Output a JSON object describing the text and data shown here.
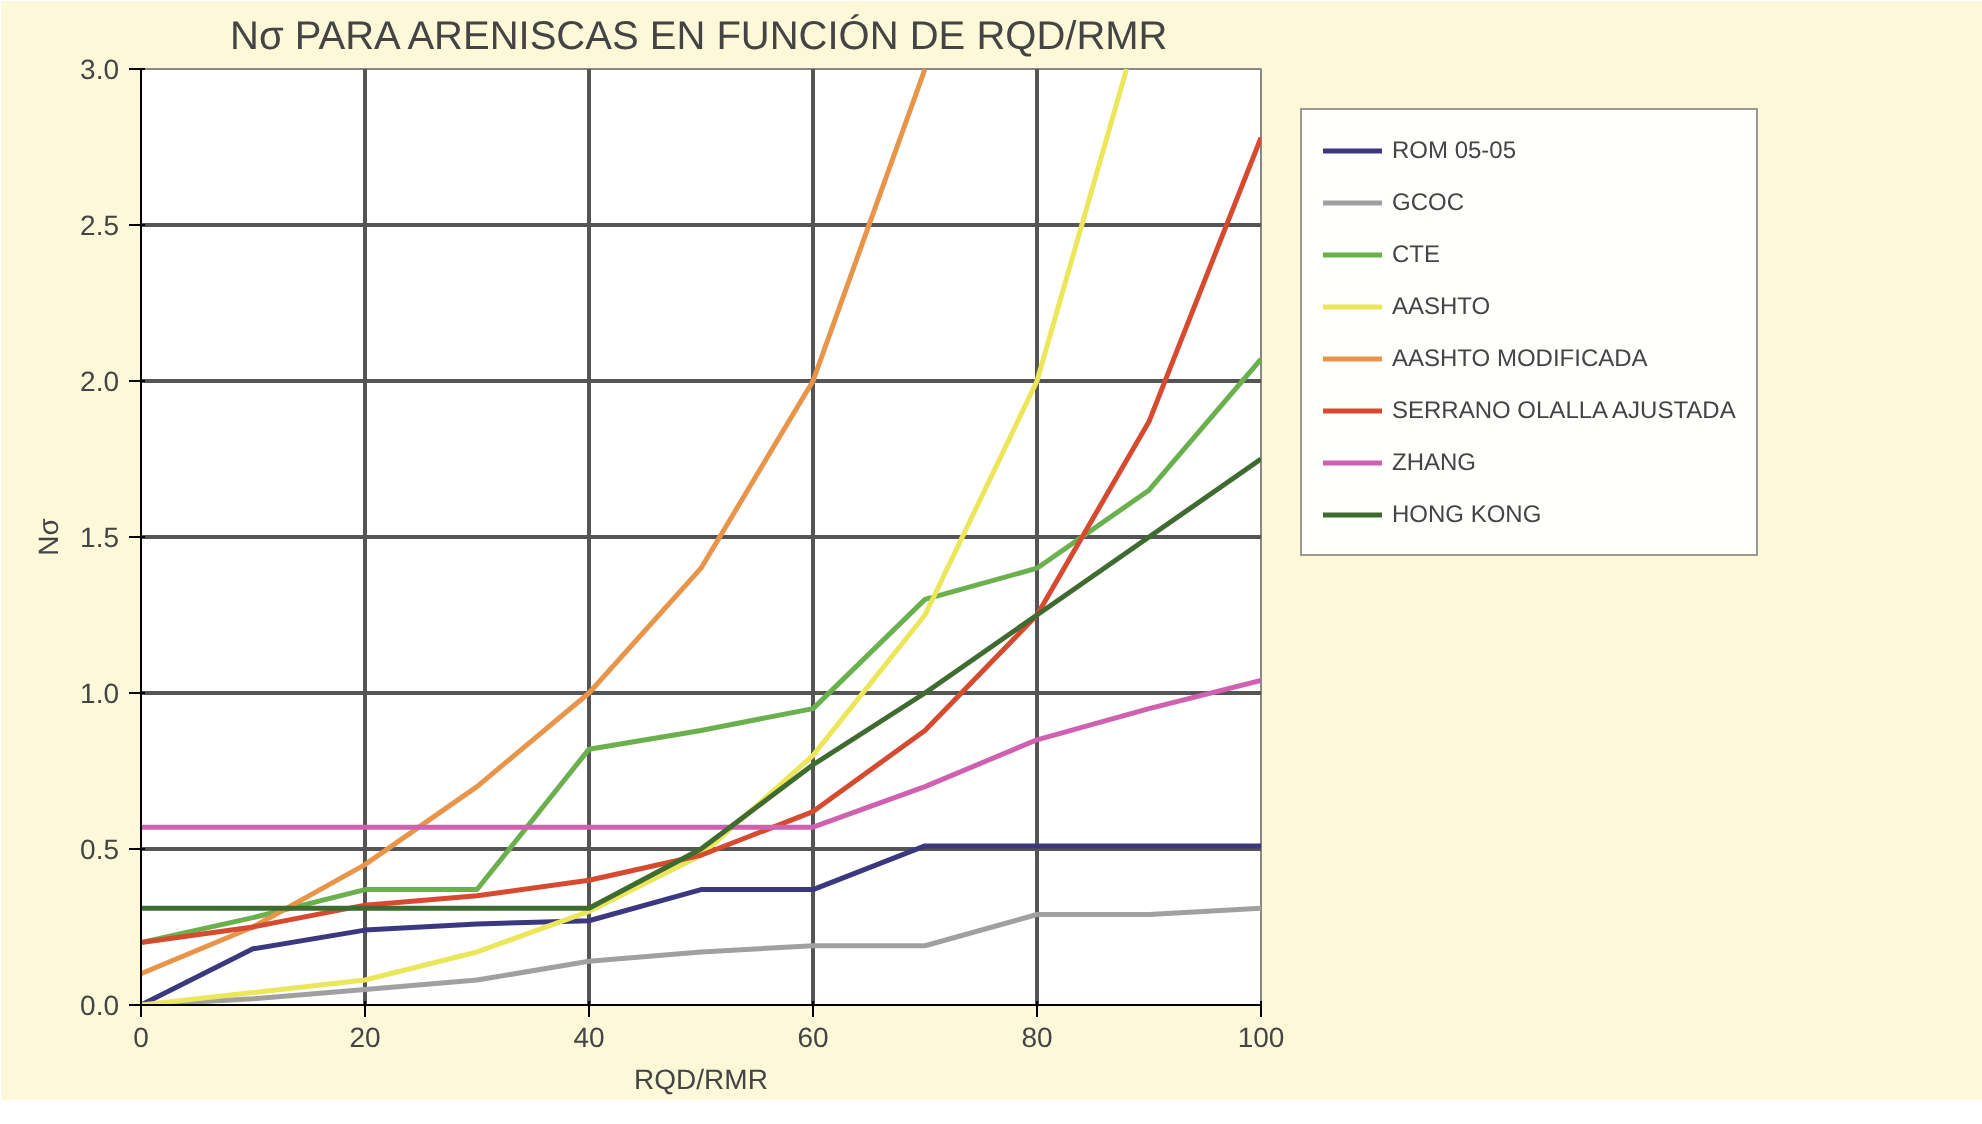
{
  "chart_data": {
    "type": "line",
    "title": "Nσ PARA ARENISCAS EN FUNCIÓN DE RQD/RMR",
    "xlabel": "RQD/RMR",
    "ylabel": "Nσ",
    "x": [
      0,
      10,
      20,
      30,
      40,
      50,
      60,
      70,
      80,
      90,
      100
    ],
    "xlim": [
      0,
      100
    ],
    "xticks": [
      0,
      20,
      40,
      60,
      80,
      100
    ],
    "ylim": [
      0,
      3.0
    ],
    "yticks": [
      {
        "value": 0,
        "label": "0.0"
      },
      0.5,
      {
        "value": 1,
        "label": "1.0"
      },
      1.5,
      {
        "value": 2,
        "label": "2.0"
      },
      2.5,
      {
        "value": 3,
        "label": "3.0"
      }
    ],
    "grid": true,
    "legend": "right",
    "marker": "none",
    "line_style": "solid",
    "series": [
      {
        "name": "ROM 05-05",
        "color": "#3b3880",
        "values": [
          0,
          0.18,
          0.24,
          0.26,
          0.27,
          0.37,
          0.37,
          0.51,
          0.51,
          0.51,
          0.51
        ]
      },
      {
        "name": "GCOC",
        "color": "#a0a0a0",
        "values": [
          0,
          0.02,
          0.05,
          0.08,
          0.14,
          0.17,
          0.19,
          0.19,
          0.29,
          0.29,
          0.31
        ]
      },
      {
        "name": "CTE",
        "color": "#6ab04c",
        "values": [
          0.2,
          0.28,
          0.37,
          0.37,
          0.82,
          0.88,
          0.95,
          1.3,
          1.4,
          1.65,
          2.07
        ]
      },
      {
        "name": "AASHTO",
        "color": "#ece65a",
        "x": [
          0,
          10,
          20,
          30,
          40,
          50,
          60,
          70,
          80,
          88
        ],
        "values": [
          0,
          0.04,
          0.08,
          0.17,
          0.3,
          0.48,
          0.8,
          1.25,
          2.0,
          3.0
        ]
      },
      {
        "name": "AASHTO MODIFICADA",
        "color": "#e8954a",
        "x": [
          0,
          10,
          20,
          30,
          40,
          50,
          60,
          70
        ],
        "values": [
          0.1,
          0.25,
          0.45,
          0.7,
          1.0,
          1.4,
          2.0,
          3.0
        ]
      },
      {
        "name": "SERRANO OLALLA AJUSTADA",
        "color": "#d64a30",
        "values": [
          0.2,
          0.25,
          0.32,
          0.35,
          0.4,
          0.48,
          0.62,
          0.88,
          1.25,
          1.87,
          2.78
        ]
      },
      {
        "name": "ZHANG",
        "color": "#d060b0",
        "values": [
          0.57,
          0.57,
          0.57,
          0.57,
          0.57,
          0.57,
          0.57,
          0.7,
          0.85,
          0.95,
          1.04
        ]
      },
      {
        "name": "HONG KONG",
        "color": "#3f6b30",
        "values": [
          0.31,
          0.31,
          0.31,
          0.31,
          0.31,
          0.5,
          0.77,
          1.0,
          1.25,
          1.5,
          1.75
        ]
      }
    ]
  }
}
